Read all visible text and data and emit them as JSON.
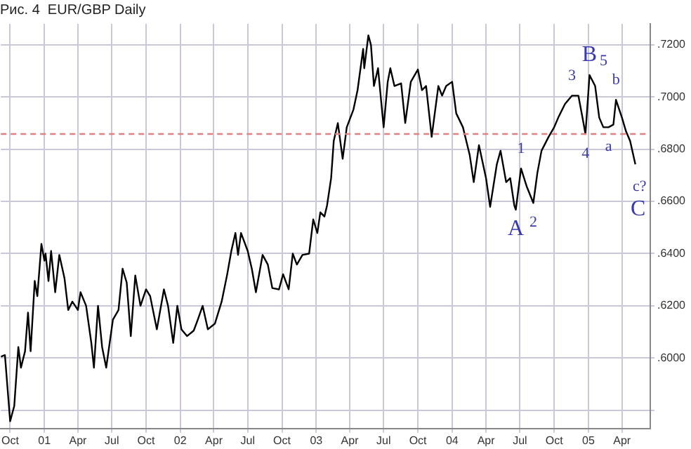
{
  "chart_data": {
    "type": "line",
    "title": "Рис. 4  EUR/GBP Daily",
    "x": [
      "2000-09-06",
      "2000-09-17",
      "2000-09-24",
      "2000-10-01",
      "2000-10-12",
      "2000-10-23",
      "2000-10-30",
      "2000-11-10",
      "2000-11-18",
      "2000-11-25",
      "2000-12-06",
      "2000-12-13",
      "2000-12-24",
      "2001-01-01",
      "2001-01-04",
      "2001-01-12",
      "2001-01-19",
      "2001-01-30",
      "2001-02-10",
      "2001-02-24",
      "2001-03-06",
      "2001-03-17",
      "2001-04-01",
      "2001-04-08",
      "2001-04-23",
      "2001-05-07",
      "2001-05-14",
      "2001-05-25",
      "2001-06-05",
      "2001-06-16",
      "2001-07-04",
      "2001-07-19",
      "2001-07-30",
      "2001-08-10",
      "2001-08-21",
      "2001-09-02",
      "2001-09-16",
      "2001-10-01",
      "2001-10-12",
      "2001-10-30",
      "2001-11-18",
      "2001-11-29",
      "2001-12-13",
      "2001-12-24",
      "2002-01-04",
      "2002-01-19",
      "2002-02-06",
      "2002-02-17",
      "2002-03-02",
      "2002-03-16",
      "2002-04-04",
      "2002-04-22",
      "2002-05-07",
      "2002-05-18",
      "2002-05-29",
      "2002-06-05",
      "2002-06-13",
      "2002-07-01",
      "2002-07-12",
      "2002-07-23",
      "2002-08-10",
      "2002-08-24",
      "2002-09-05",
      "2002-09-23",
      "2002-10-04",
      "2002-10-19",
      "2002-10-30",
      "2002-11-10",
      "2002-11-25",
      "2002-12-13",
      "2002-12-24",
      "2003-01-04",
      "2003-01-12",
      "2003-01-23",
      "2003-01-30",
      "2003-02-10",
      "2003-02-17",
      "2003-02-28",
      "2003-03-13",
      "2003-03-24",
      "2003-04-11",
      "2003-04-22",
      "2003-05-07",
      "2003-05-10",
      "2003-05-21",
      "2003-05-28",
      "2003-06-05",
      "2003-06-16",
      "2003-07-01",
      "2003-07-12",
      "2003-07-19",
      "2003-07-30",
      "2003-08-17",
      "2003-08-28",
      "2003-09-12",
      "2003-10-01",
      "2003-10-12",
      "2003-10-23",
      "2003-11-07",
      "2003-11-25",
      "2003-12-05",
      "2003-12-16",
      "2004-01-01",
      "2004-01-12",
      "2004-01-30",
      "2004-02-17",
      "2004-02-28",
      "2004-03-13",
      "2004-04-01",
      "2004-04-12",
      "2004-04-30",
      "2004-05-10",
      "2004-05-25",
      "2004-06-05",
      "2004-06-16",
      "2004-06-20",
      "2004-07-04",
      "2004-07-19",
      "2004-08-06",
      "2004-08-17",
      "2004-08-28",
      "2004-09-16",
      "2004-10-01",
      "2004-10-12",
      "2004-10-30",
      "2004-11-18",
      "2004-12-05",
      "2004-12-16",
      "2004-12-24",
      "2005-01-04",
      "2005-01-19",
      "2005-01-30",
      "2005-02-10",
      "2005-02-24",
      "2005-03-09",
      "2005-03-16",
      "2005-04-01",
      "2005-04-12",
      "2005-04-23",
      "2005-05-07"
    ],
    "series": [
      {
        "color": "#000000",
        "values": [
          0.6005,
          0.6011,
          0.5884,
          0.5758,
          0.5816,
          0.6042,
          0.5963,
          0.6026,
          0.6174,
          0.6026,
          0.6295,
          0.6237,
          0.6437,
          0.6373,
          0.64,
          0.6295,
          0.641,
          0.6252,
          0.6395,
          0.6305,
          0.6184,
          0.6216,
          0.6184,
          0.6252,
          0.62,
          0.6058,
          0.5963,
          0.62,
          0.6042,
          0.5963,
          0.6147,
          0.6184,
          0.6342,
          0.6289,
          0.6084,
          0.6316,
          0.62,
          0.6263,
          0.6237,
          0.611,
          0.6263,
          0.62,
          0.6058,
          0.62,
          0.611,
          0.6084,
          0.6105,
          0.6147,
          0.62,
          0.611,
          0.6132,
          0.6216,
          0.6321,
          0.641,
          0.6479,
          0.6395,
          0.6479,
          0.641,
          0.6342,
          0.6252,
          0.6395,
          0.6358,
          0.6268,
          0.6263,
          0.6321,
          0.6263,
          0.64,
          0.6358,
          0.6395,
          0.64,
          0.6531,
          0.6479,
          0.6558,
          0.6542,
          0.6584,
          0.6689,
          0.6831,
          0.69,
          0.6763,
          0.6884,
          0.6952,
          0.7026,
          0.7184,
          0.711,
          0.7236,
          0.7199,
          0.7042,
          0.711,
          0.6884,
          0.7058,
          0.711,
          0.7042,
          0.7052,
          0.69,
          0.7058,
          0.7105,
          0.7026,
          0.7042,
          0.6847,
          0.7042,
          0.7005,
          0.7042,
          0.7058,
          0.6937,
          0.6884,
          0.6779,
          0.6674,
          0.6815,
          0.6689,
          0.6579,
          0.6742,
          0.6794,
          0.6674,
          0.6689,
          0.6584,
          0.6568,
          0.6726,
          0.6658,
          0.6594,
          0.671,
          0.6794,
          0.6847,
          0.6884,
          0.6921,
          0.6973,
          0.7005,
          0.7005,
          0.6921,
          0.6858,
          0.7084,
          0.7042,
          0.6921,
          0.6884,
          0.6884,
          0.6894,
          0.6989,
          0.6921,
          0.6868,
          0.6831,
          0.6742
        ]
      }
    ],
    "xlim": [
      "2000-09-06",
      "2005-06-16"
    ],
    "xticks": [
      {
        "value": "2000-10-01",
        "label": "Oct"
      },
      {
        "value": "2001-01-01",
        "label": "01"
      },
      {
        "value": "2001-04-01",
        "label": "Apr"
      },
      {
        "value": "2001-07-01",
        "label": "Jul"
      },
      {
        "value": "2001-10-01",
        "label": "Oct"
      },
      {
        "value": "2002-01-01",
        "label": "02"
      },
      {
        "value": "2002-04-01",
        "label": "Apr"
      },
      {
        "value": "2002-07-01",
        "label": "Jul"
      },
      {
        "value": "2002-10-01",
        "label": "Oct"
      },
      {
        "value": "2003-01-01",
        "label": "03"
      },
      {
        "value": "2003-04-01",
        "label": "Apr"
      },
      {
        "value": "2003-07-01",
        "label": "Jul"
      },
      {
        "value": "2003-10-01",
        "label": "Oct"
      },
      {
        "value": "2004-01-01",
        "label": "04"
      },
      {
        "value": "2004-04-01",
        "label": "Apr"
      },
      {
        "value": "2004-07-01",
        "label": "Jul"
      },
      {
        "value": "2004-10-01",
        "label": "Oct"
      },
      {
        "value": "2005-01-01",
        "label": "05"
      },
      {
        "value": "2005-04-01",
        "label": "Apr"
      }
    ],
    "ylim": [
      0.573,
      0.728
    ],
    "yticks": [
      {
        "value": 0.58,
        "label": null
      },
      {
        "value": 0.6,
        "label": ".6000"
      },
      {
        "value": 0.62,
        "label": ".6200"
      },
      {
        "value": 0.64,
        "label": ".6400"
      },
      {
        "value": 0.66,
        "label": ".6600"
      },
      {
        "value": 0.68,
        "label": ".6800"
      },
      {
        "value": 0.7,
        "label": ".7000"
      },
      {
        "value": 0.72,
        "label": ".7200"
      }
    ],
    "grid": true,
    "legend": false,
    "marker": "none",
    "line_style": "solid",
    "ref_lines": [
      {
        "axis": "y",
        "value": 0.6858,
        "color": "#e08080",
        "line_style": "dashed"
      }
    ],
    "annotations": [
      {
        "text": "A",
        "x": "2004-06-20",
        "y": 0.6568
      },
      {
        "text": "1",
        "x": "2004-07-04",
        "y": 0.6726
      },
      {
        "text": "2",
        "x": "2004-08-06",
        "y": 0.6594
      },
      {
        "text": "3",
        "x": "2004-11-18",
        "y": 0.7005
      },
      {
        "text": "4",
        "x": "2004-12-24",
        "y": 0.6858
      },
      {
        "text": "B",
        "x": "2005-01-04",
        "y": 0.7084
      },
      {
        "text": "5",
        "x": "2005-01-04",
        "y": 0.7084
      },
      {
        "text": "a",
        "x": "2005-02-24",
        "y": 0.6884
      },
      {
        "text": "b",
        "x": "2005-03-16",
        "y": 0.6989
      },
      {
        "text": "c?",
        "x": "2005-05-07",
        "y": 0.6742
      },
      {
        "text": "C",
        "x": "2005-05-07",
        "y": 0.6742
      }
    ]
  }
}
